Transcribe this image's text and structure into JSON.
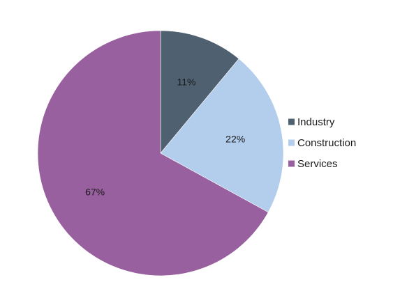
{
  "chart_data": {
    "type": "pie",
    "title": "",
    "categories": [
      "Industry",
      "Construction",
      "Services"
    ],
    "values": [
      11,
      22,
      67
    ],
    "labels": [
      "11%",
      "22%",
      "67%"
    ],
    "colors": [
      "#4f6170",
      "#b3cdec",
      "#98609e"
    ],
    "start_angle_deg": 0,
    "direction": "clockwise",
    "legend_position": "right",
    "legend": [
      {
        "label": "Industry",
        "color": "#4f6170"
      },
      {
        "label": "Construction",
        "color": "#b3cdec"
      },
      {
        "label": "Services",
        "color": "#98609e"
      }
    ]
  }
}
